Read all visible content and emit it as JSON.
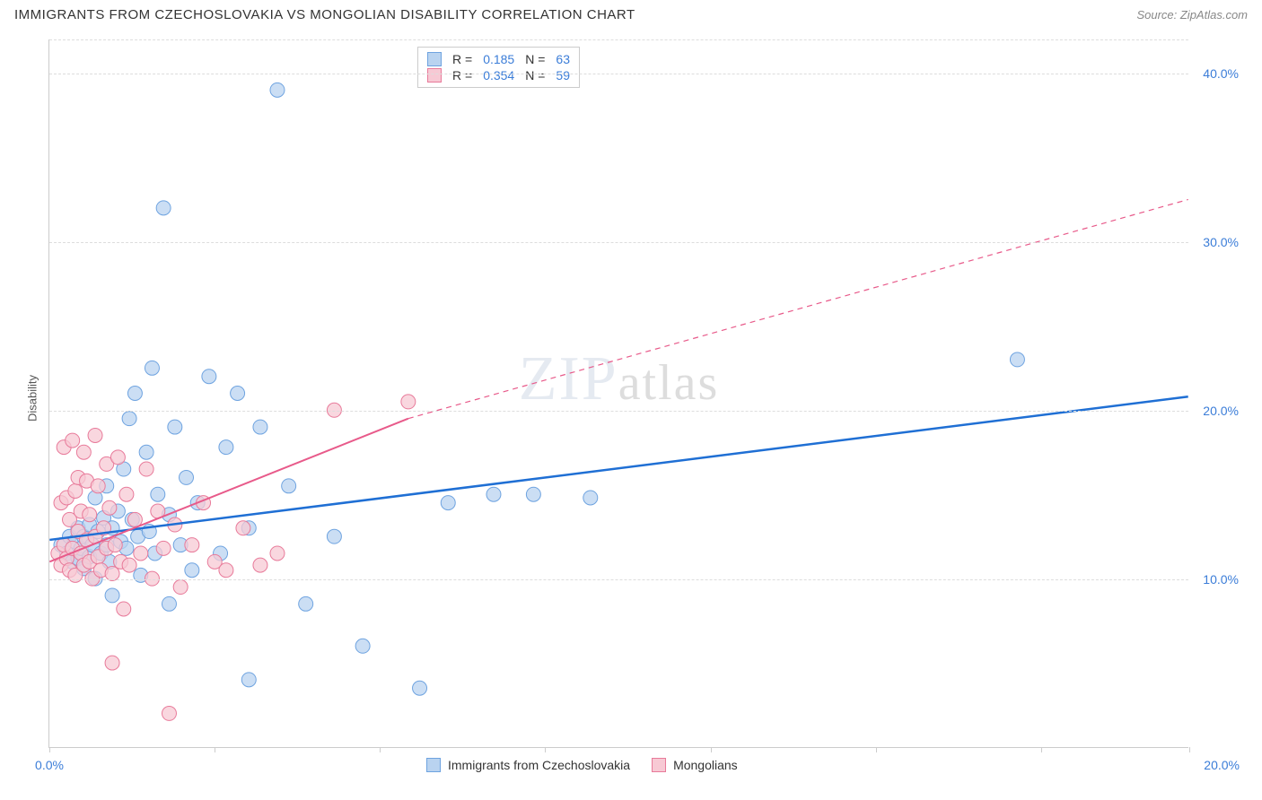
{
  "header": {
    "title": "IMMIGRANTS FROM CZECHOSLOVAKIA VS MONGOLIAN DISABILITY CORRELATION CHART",
    "source": "Source: ZipAtlas.com"
  },
  "chart": {
    "type": "scatter",
    "ylabel": "Disability",
    "watermark_main": "ZIP",
    "watermark_sub": "atlas",
    "xlim": [
      0,
      20
    ],
    "ylim": [
      0,
      42
    ],
    "ytick_labels": [
      "10.0%",
      "20.0%",
      "30.0%",
      "40.0%"
    ],
    "ytick_values": [
      10,
      20,
      30,
      40
    ],
    "xtick_labels_left": "0.0%",
    "xtick_labels_right": "20.0%",
    "xtick_positions": [
      0,
      2.9,
      5.8,
      8.7,
      11.6,
      14.5,
      17.4,
      20
    ],
    "grid_color": "#dddddd",
    "axis_color": "#cccccc",
    "background_color": "#ffffff",
    "series": [
      {
        "name": "Immigrants from Czechoslovakia",
        "color_fill": "#b9d3f0",
        "color_stroke": "#6ea3e0",
        "marker_radius": 8,
        "trend": {
          "style": "solid",
          "color": "#1f6fd4",
          "width": 2.5,
          "x1": 0,
          "y1": 12.3,
          "x2": 20,
          "y2": 20.8
        },
        "R": "0.185",
        "N": "63",
        "points": [
          [
            0.2,
            12.0
          ],
          [
            0.3,
            11.5
          ],
          [
            0.35,
            12.5
          ],
          [
            0.4,
            11.0
          ],
          [
            0.45,
            12.2
          ],
          [
            0.5,
            13.0
          ],
          [
            0.5,
            11.2
          ],
          [
            0.55,
            11.8
          ],
          [
            0.6,
            12.5
          ],
          [
            0.6,
            10.6
          ],
          [
            0.7,
            13.2
          ],
          [
            0.7,
            11.3
          ],
          [
            0.75,
            12.0
          ],
          [
            0.8,
            14.8
          ],
          [
            0.8,
            10.0
          ],
          [
            0.85,
            12.8
          ],
          [
            0.9,
            11.5
          ],
          [
            0.95,
            13.6
          ],
          [
            1.0,
            12.0
          ],
          [
            1.0,
            15.5
          ],
          [
            1.05,
            11.0
          ],
          [
            1.1,
            13.0
          ],
          [
            1.1,
            9.0
          ],
          [
            1.2,
            14.0
          ],
          [
            1.25,
            12.2
          ],
          [
            1.3,
            16.5
          ],
          [
            1.35,
            11.8
          ],
          [
            1.4,
            19.5
          ],
          [
            1.45,
            13.5
          ],
          [
            1.5,
            21.0
          ],
          [
            1.55,
            12.5
          ],
          [
            1.6,
            10.2
          ],
          [
            1.7,
            17.5
          ],
          [
            1.75,
            12.8
          ],
          [
            1.8,
            22.5
          ],
          [
            1.85,
            11.5
          ],
          [
            1.9,
            15.0
          ],
          [
            2.0,
            32.0
          ],
          [
            2.1,
            13.8
          ],
          [
            2.1,
            8.5
          ],
          [
            2.2,
            19.0
          ],
          [
            2.3,
            12.0
          ],
          [
            2.4,
            16.0
          ],
          [
            2.5,
            10.5
          ],
          [
            2.6,
            14.5
          ],
          [
            2.8,
            22.0
          ],
          [
            3.0,
            11.5
          ],
          [
            3.1,
            17.8
          ],
          [
            3.3,
            21.0
          ],
          [
            3.5,
            13.0
          ],
          [
            3.5,
            4.0
          ],
          [
            3.7,
            19.0
          ],
          [
            4.0,
            39.0
          ],
          [
            4.2,
            15.5
          ],
          [
            4.5,
            8.5
          ],
          [
            5.0,
            12.5
          ],
          [
            5.5,
            6.0
          ],
          [
            6.5,
            3.5
          ],
          [
            7.0,
            14.5
          ],
          [
            7.8,
            15.0
          ],
          [
            8.5,
            15.0
          ],
          [
            9.5,
            14.8
          ],
          [
            17.0,
            23.0
          ]
        ]
      },
      {
        "name": "Mongolians",
        "color_fill": "#f7c9d4",
        "color_stroke": "#e87a9a",
        "marker_radius": 8,
        "trend": {
          "style": "solid_then_dashed",
          "color": "#e85a8a",
          "width": 2,
          "x1": 0,
          "y1": 11.0,
          "x_mid": 6.3,
          "y_mid": 19.5,
          "x2": 20,
          "y2": 32.5
        },
        "R": "0.354",
        "N": "59",
        "points": [
          [
            0.15,
            11.5
          ],
          [
            0.2,
            14.5
          ],
          [
            0.2,
            10.8
          ],
          [
            0.25,
            12.0
          ],
          [
            0.25,
            17.8
          ],
          [
            0.3,
            11.2
          ],
          [
            0.3,
            14.8
          ],
          [
            0.35,
            10.5
          ],
          [
            0.35,
            13.5
          ],
          [
            0.4,
            18.2
          ],
          [
            0.4,
            11.8
          ],
          [
            0.45,
            15.2
          ],
          [
            0.45,
            10.2
          ],
          [
            0.5,
            12.8
          ],
          [
            0.5,
            16.0
          ],
          [
            0.55,
            11.5
          ],
          [
            0.55,
            14.0
          ],
          [
            0.6,
            10.8
          ],
          [
            0.6,
            17.5
          ],
          [
            0.65,
            12.3
          ],
          [
            0.65,
            15.8
          ],
          [
            0.7,
            11.0
          ],
          [
            0.7,
            13.8
          ],
          [
            0.75,
            10.0
          ],
          [
            0.8,
            12.5
          ],
          [
            0.8,
            18.5
          ],
          [
            0.85,
            11.3
          ],
          [
            0.85,
            15.5
          ],
          [
            0.9,
            10.5
          ],
          [
            0.95,
            13.0
          ],
          [
            1.0,
            16.8
          ],
          [
            1.0,
            11.8
          ],
          [
            1.05,
            14.2
          ],
          [
            1.1,
            10.3
          ],
          [
            1.1,
            5.0
          ],
          [
            1.15,
            12.0
          ],
          [
            1.2,
            17.2
          ],
          [
            1.25,
            11.0
          ],
          [
            1.3,
            8.2
          ],
          [
            1.35,
            15.0
          ],
          [
            1.4,
            10.8
          ],
          [
            1.5,
            13.5
          ],
          [
            1.6,
            11.5
          ],
          [
            1.7,
            16.5
          ],
          [
            1.8,
            10.0
          ],
          [
            1.9,
            14.0
          ],
          [
            2.0,
            11.8
          ],
          [
            2.1,
            2.0
          ],
          [
            2.2,
            13.2
          ],
          [
            2.3,
            9.5
          ],
          [
            2.5,
            12.0
          ],
          [
            2.7,
            14.5
          ],
          [
            2.9,
            11.0
          ],
          [
            3.1,
            10.5
          ],
          [
            3.4,
            13.0
          ],
          [
            3.7,
            10.8
          ],
          [
            4.0,
            11.5
          ],
          [
            5.0,
            20.0
          ],
          [
            6.3,
            20.5
          ]
        ]
      }
    ],
    "legend_top": {
      "rows": [
        {
          "R_label": "R =",
          "N_label": "N ="
        }
      ]
    },
    "legend_bottom": {
      "label1": "Immigrants from Czechoslovakia",
      "label2": "Mongolians"
    }
  }
}
